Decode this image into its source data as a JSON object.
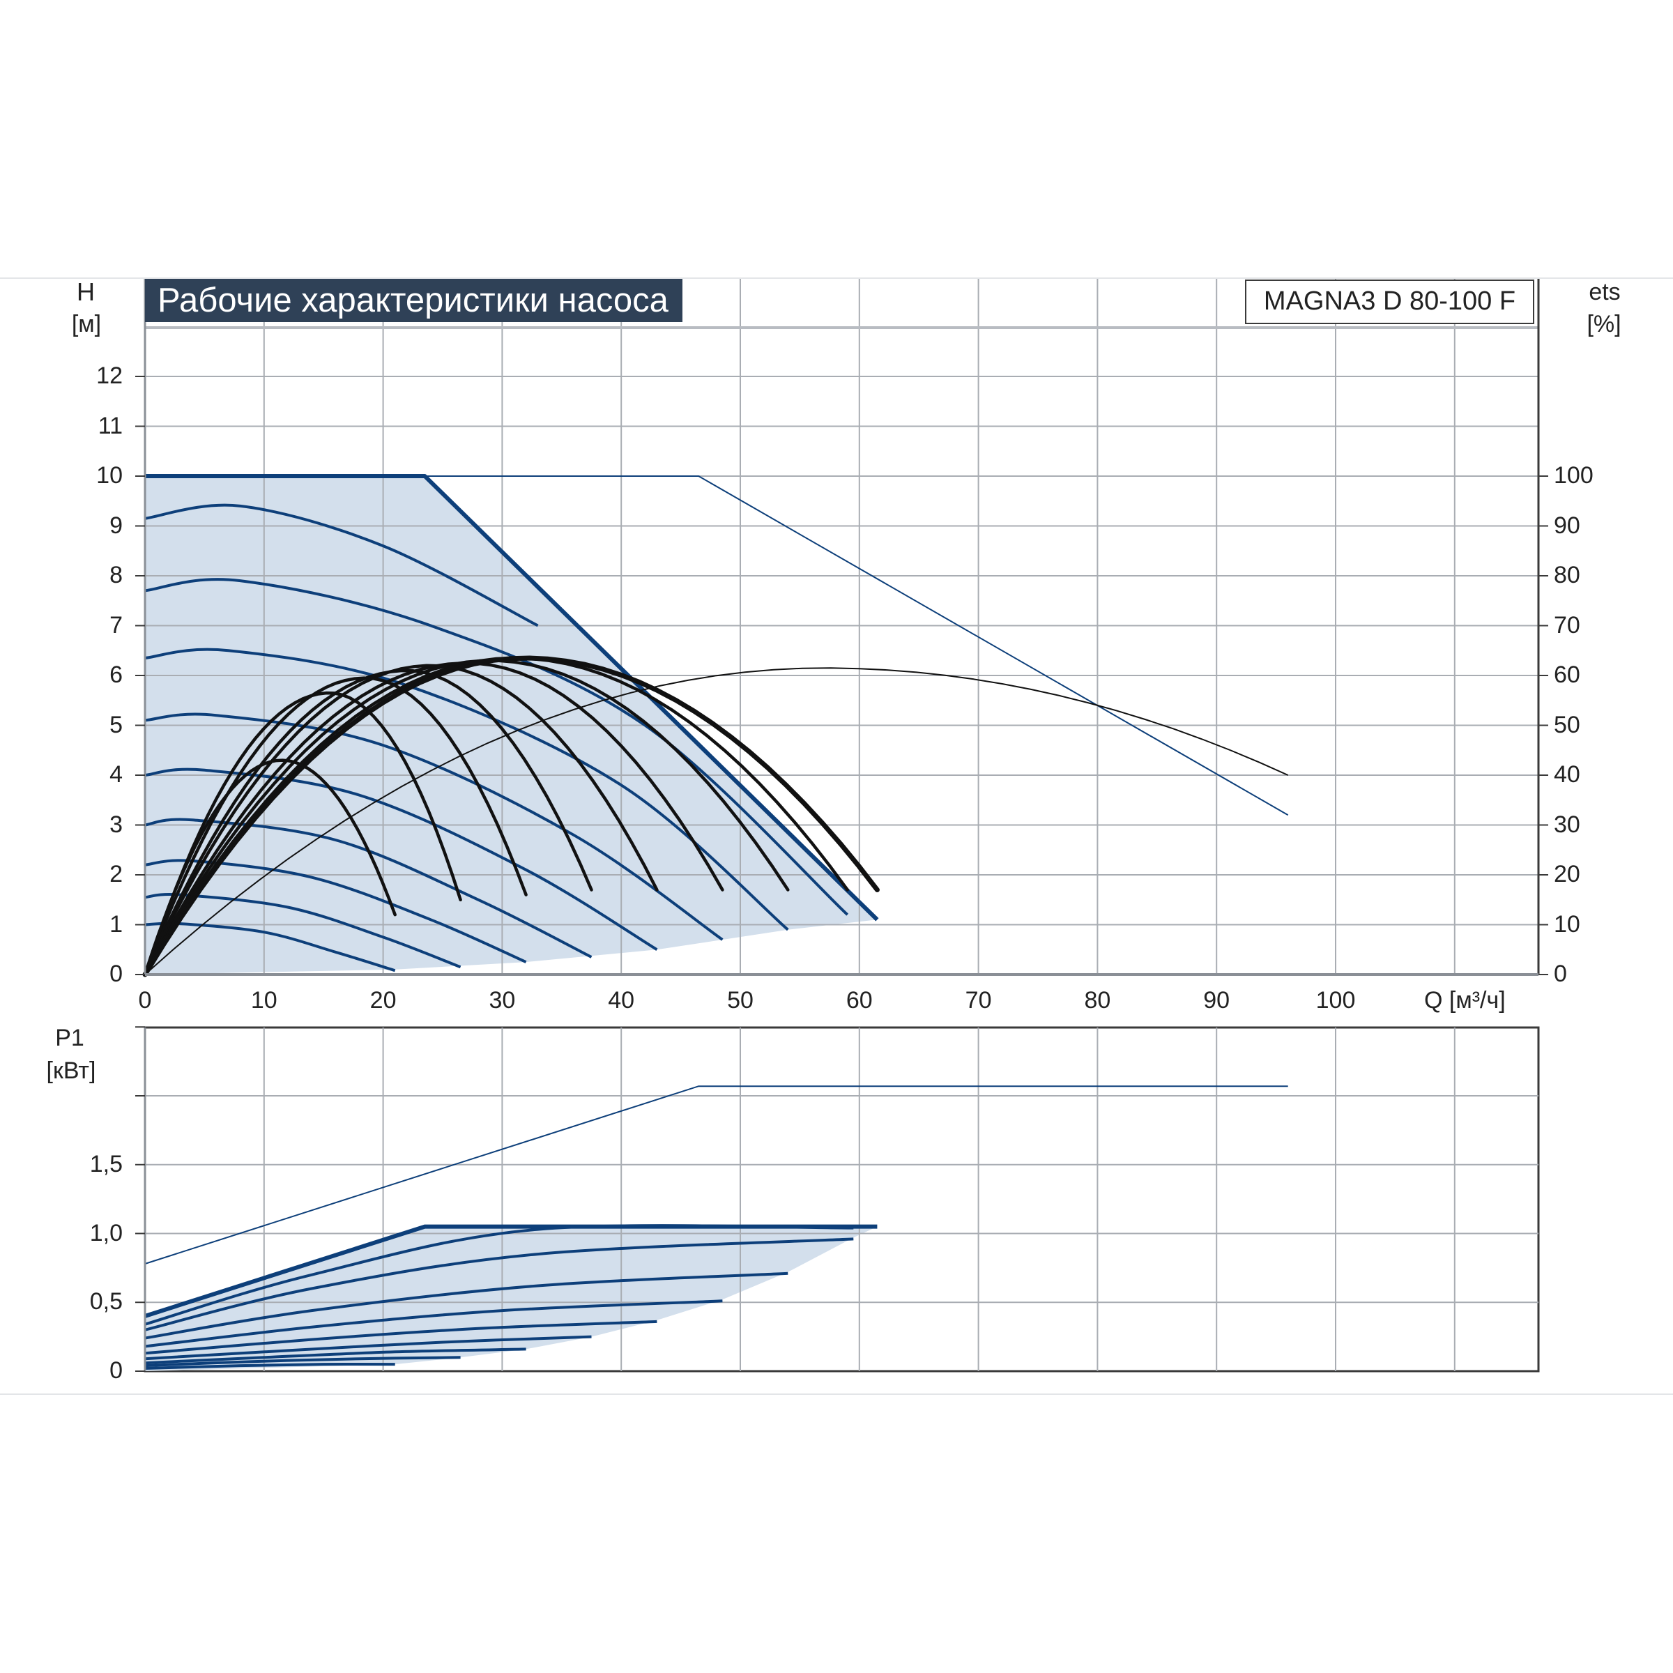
{
  "title": "Рабочие характеристики насоса",
  "model": "MAGNA3 D 80-100 F",
  "colors": {
    "accent": "#0d3f7a",
    "fill": "#d3dfec",
    "black": "#111111",
    "grid": "#a9adb3",
    "title_bg": "#2f4157"
  },
  "chart_data": [
    {
      "type": "line",
      "name": "head",
      "ylabel_top": "H",
      "ylabel_unit": "[м]",
      "y2label_top": "ets",
      "y2label_unit": "[%]",
      "xlabel": "Q [м³/ч]",
      "xlim": [
        0,
        117
      ],
      "ylim": [
        0,
        13.3
      ],
      "y2lim": [
        0,
        100
      ],
      "xticks": [
        "0",
        "10",
        "20",
        "30",
        "40",
        "50",
        "60",
        "70",
        "80",
        "90",
        "100"
      ],
      "yticks": [
        "0",
        "1",
        "2",
        "3",
        "4",
        "5",
        "6",
        "7",
        "8",
        "9",
        "10",
        "11",
        "12"
      ],
      "y2ticks": [
        "0",
        "10",
        "20",
        "30",
        "40",
        "50",
        "60",
        "70",
        "80",
        "90",
        "100"
      ],
      "grid": true,
      "operating_area": [
        [
          0,
          0
        ],
        [
          0,
          10
        ],
        [
          23.5,
          10
        ],
        [
          61.5,
          1.1
        ],
        [
          54,
          0.9
        ],
        [
          43,
          0.5
        ],
        [
          32,
          0.25
        ],
        [
          21,
          0.1
        ],
        [
          0,
          0
        ]
      ],
      "head_curves": [
        {
          "ends_q": 61.5,
          "points": [
            [
              0,
              10
            ],
            [
              23.5,
              10
            ],
            [
              61.5,
              1.1
            ]
          ]
        },
        {
          "ends_q": 33,
          "points": [
            [
              0,
              9.15
            ],
            [
              8,
              9.4
            ],
            [
              20,
              8.6
            ],
            [
              33,
              7
            ]
          ]
        },
        {
          "ends_q": 59,
          "points": [
            [
              0,
              7.7
            ],
            [
              8,
              7.9
            ],
            [
              24,
              7
            ],
            [
              42,
              5
            ],
            [
              59,
              1.2
            ]
          ]
        },
        {
          "ends_q": 54,
          "points": [
            [
              0,
              6.35
            ],
            [
              7,
              6.5
            ],
            [
              22,
              5.8
            ],
            [
              40,
              3.8
            ],
            [
              54,
              0.9
            ]
          ]
        },
        {
          "ends_q": 48.5,
          "points": [
            [
              0,
              5.1
            ],
            [
              6,
              5.2
            ],
            [
              20,
              4.6
            ],
            [
              36,
              2.8
            ],
            [
              48.5,
              0.7
            ]
          ]
        },
        {
          "ends_q": 43,
          "points": [
            [
              0,
              4
            ],
            [
              5,
              4.1
            ],
            [
              18,
              3.6
            ],
            [
              32,
              2.1
            ],
            [
              43,
              0.5
            ]
          ]
        },
        {
          "ends_q": 37.5,
          "points": [
            [
              0,
              3
            ],
            [
              4,
              3.1
            ],
            [
              16,
              2.7
            ],
            [
              28,
              1.5
            ],
            [
              37.5,
              0.35
            ]
          ]
        },
        {
          "ends_q": 32,
          "points": [
            [
              0,
              2.2
            ],
            [
              4,
              2.28
            ],
            [
              14,
              1.95
            ],
            [
              24,
              1.1
            ],
            [
              32,
              0.25
            ]
          ]
        },
        {
          "ends_q": 26.5,
          "points": [
            [
              0,
              1.55
            ],
            [
              3,
              1.6
            ],
            [
              12,
              1.35
            ],
            [
              20,
              0.75
            ],
            [
              26.5,
              0.15
            ]
          ]
        },
        {
          "ends_q": 21,
          "points": [
            [
              0,
              1
            ],
            [
              3,
              1.02
            ],
            [
              10,
              0.85
            ],
            [
              16,
              0.45
            ],
            [
              21,
              0.08
            ]
          ]
        }
      ],
      "head_curve_max": {
        "points": [
          [
            0,
            10
          ],
          [
            46.5,
            10
          ],
          [
            96,
            3.2
          ]
        ]
      },
      "efficiency_curves": [
        {
          "q_end": 61.5,
          "eta_peak": 63.5,
          "q_peak": 32,
          "eta_end": 17
        },
        {
          "q_end": 59,
          "eta_peak": 63.5,
          "q_peak": 31,
          "eta_end": 17
        },
        {
          "q_end": 54,
          "eta_peak": 63,
          "q_peak": 29,
          "eta_end": 17
        },
        {
          "q_end": 48.5,
          "eta_peak": 62.5,
          "q_peak": 27,
          "eta_end": 17
        },
        {
          "q_end": 43,
          "eta_peak": 62,
          "q_peak": 24,
          "eta_end": 17
        },
        {
          "q_end": 37.5,
          "eta_peak": 61,
          "q_peak": 22,
          "eta_end": 17
        },
        {
          "q_end": 32,
          "eta_peak": 59.5,
          "q_peak": 18.5,
          "eta_end": 16
        },
        {
          "q_end": 26.5,
          "eta_peak": 56.5,
          "q_peak": 15.5,
          "eta_end": 15
        },
        {
          "q_end": 21,
          "eta_peak": 43,
          "q_peak": 11.5,
          "eta_end": 12
        }
      ],
      "efficiency_curve_max": {
        "q_end": 96,
        "eta_peak": 61.5,
        "q_peak": 57,
        "eta_end": 40
      }
    },
    {
      "type": "line",
      "name": "power",
      "ylabel_top": "P1",
      "ylabel_unit": "[кВт]",
      "xlim": [
        0,
        117
      ],
      "ylim": [
        0,
        2.5
      ],
      "yticks": [
        "0",
        "0,5",
        "1,0",
        "1,5"
      ],
      "grid": true,
      "operating_area": [
        [
          0,
          0
        ],
        [
          0,
          0.4
        ],
        [
          23.5,
          1.05
        ],
        [
          61.5,
          1.05
        ],
        [
          59.5,
          0.97
        ],
        [
          54,
          0.72
        ],
        [
          48.5,
          0.52
        ],
        [
          43,
          0.37
        ],
        [
          37.5,
          0.25
        ],
        [
          32,
          0.16
        ],
        [
          26.5,
          0.1
        ],
        [
          21,
          0.05
        ],
        [
          0,
          0
        ]
      ],
      "power_curves": [
        {
          "points": [
            [
              0,
              0.4
            ],
            [
              23.5,
              1.05
            ],
            [
              61.5,
              1.05
            ]
          ]
        },
        {
          "points": [
            [
              0,
              0.34
            ],
            [
              14,
              0.7
            ],
            [
              33,
              1.03
            ],
            [
              59.5,
              1.04
            ]
          ]
        },
        {
          "points": [
            [
              0,
              0.3
            ],
            [
              14,
              0.6
            ],
            [
              33,
              0.85
            ],
            [
              59.5,
              0.96
            ]
          ]
        },
        {
          "points": [
            [
              0,
              0.24
            ],
            [
              14,
              0.44
            ],
            [
              33,
              0.62
            ],
            [
              54,
              0.71
            ]
          ]
        },
        {
          "points": [
            [
              0,
              0.18
            ],
            [
              14,
              0.32
            ],
            [
              30,
              0.44
            ],
            [
              48.5,
              0.51
            ]
          ]
        },
        {
          "points": [
            [
              0,
              0.13
            ],
            [
              14,
              0.23
            ],
            [
              28,
              0.31
            ],
            [
              43,
              0.36
            ]
          ]
        },
        {
          "points": [
            [
              0,
              0.09
            ],
            [
              12,
              0.15
            ],
            [
              25,
              0.21
            ],
            [
              37.5,
              0.25
            ]
          ]
        },
        {
          "points": [
            [
              0,
              0.06
            ],
            [
              10,
              0.1
            ],
            [
              21,
              0.14
            ],
            [
              32,
              0.16
            ]
          ]
        },
        {
          "points": [
            [
              0,
              0.04
            ],
            [
              9,
              0.07
            ],
            [
              18,
              0.09
            ],
            [
              26.5,
              0.1
            ]
          ]
        },
        {
          "points": [
            [
              0,
              0.02
            ],
            [
              8,
              0.04
            ],
            [
              15,
              0.05
            ],
            [
              21,
              0.05
            ]
          ]
        }
      ],
      "power_curve_max": {
        "points": [
          [
            0,
            0.78
          ],
          [
            46.5,
            2.07
          ],
          [
            96,
            2.07
          ]
        ]
      }
    }
  ]
}
